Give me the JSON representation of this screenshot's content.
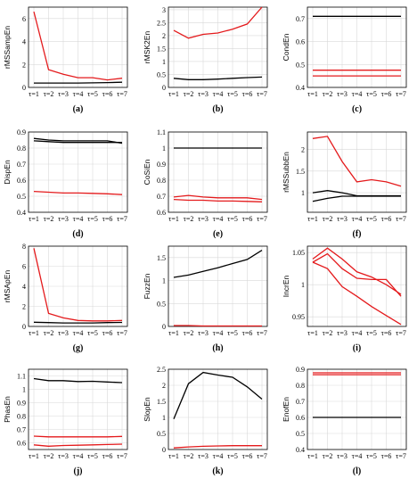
{
  "chart_data": [
    {
      "type": "line",
      "caption": "(a)",
      "ylabel": "rMSSampEn",
      "x": [
        "τ=1",
        "τ=2",
        "τ=3",
        "τ=4",
        "τ=5",
        "τ=6",
        "τ=7"
      ],
      "ylim": [
        0,
        7
      ],
      "yticks": [
        0,
        2,
        4,
        6
      ],
      "ytick_labels": [
        "0",
        "2",
        "4",
        "6"
      ],
      "series": [
        {
          "color": "#e41a1c",
          "values": [
            6.6,
            1.55,
            1.15,
            0.85,
            0.85,
            0.65,
            0.8
          ]
        },
        {
          "color": "#000000",
          "values": [
            0.38,
            0.38,
            0.38,
            0.38,
            0.4,
            0.42,
            0.45
          ]
        }
      ]
    },
    {
      "type": "line",
      "caption": "(b)",
      "ylabel": "rMSK2En",
      "x": [
        "τ=1",
        "τ=2",
        "τ=3",
        "τ=4",
        "τ=5",
        "τ=6",
        "τ=7"
      ],
      "ylim": [
        0,
        3.1
      ],
      "yticks": [
        0,
        0.5,
        1,
        1.5,
        2,
        2.5,
        3
      ],
      "ytick_labels": [
        "0",
        "0.5",
        "1",
        "1.5",
        "2",
        "2.5",
        "3"
      ],
      "series": [
        {
          "color": "#e41a1c",
          "values": [
            2.2,
            1.9,
            2.05,
            2.1,
            2.25,
            2.45,
            3.1
          ]
        },
        {
          "color": "#000000",
          "values": [
            0.35,
            0.3,
            0.3,
            0.32,
            0.35,
            0.38,
            0.4
          ]
        }
      ]
    },
    {
      "type": "line",
      "caption": "(c)",
      "ylabel": "CondEn",
      "x": [
        "τ=1",
        "τ=2",
        "τ=3",
        "τ=4",
        "τ=5",
        "τ=6",
        "τ=7"
      ],
      "ylim": [
        0.4,
        0.75
      ],
      "yticks": [
        0.4,
        0.5,
        0.6,
        0.7
      ],
      "ytick_labels": [
        "0.4",
        "0.5",
        "0.6",
        "0.7"
      ],
      "series": [
        {
          "color": "#000000",
          "values": [
            0.71,
            0.71,
            0.71,
            0.71,
            0.71,
            0.71,
            0.71
          ]
        },
        {
          "color": "#e41a1c",
          "values": [
            0.475,
            0.475,
            0.475,
            0.475,
            0.475,
            0.475,
            0.475
          ]
        },
        {
          "color": "#e41a1c",
          "values": [
            0.45,
            0.45,
            0.45,
            0.45,
            0.45,
            0.45,
            0.45
          ]
        }
      ]
    },
    {
      "type": "line",
      "caption": "(d)",
      "ylabel": "DispEn",
      "x": [
        "τ=1",
        "τ=2",
        "τ=3",
        "τ=4",
        "τ=5",
        "τ=6",
        "τ=7"
      ],
      "ylim": [
        0.4,
        0.9
      ],
      "yticks": [
        0.4,
        0.5,
        0.6,
        0.7,
        0.8,
        0.9
      ],
      "ytick_labels": [
        "0.4",
        "0.5",
        "0.6",
        "0.7",
        "0.8",
        "0.9"
      ],
      "series": [
        {
          "color": "#000000",
          "values": [
            0.86,
            0.85,
            0.845,
            0.845,
            0.845,
            0.845,
            0.83
          ]
        },
        {
          "color": "#000000",
          "values": [
            0.845,
            0.84,
            0.835,
            0.835,
            0.835,
            0.835,
            0.835
          ]
        },
        {
          "color": "#e41a1c",
          "values": [
            0.53,
            0.525,
            0.52,
            0.52,
            0.518,
            0.515,
            0.51
          ]
        }
      ]
    },
    {
      "type": "line",
      "caption": "(e)",
      "ylabel": "CoSiEn",
      "x": [
        "τ=1",
        "τ=2",
        "τ=3",
        "τ=4",
        "τ=5",
        "τ=6",
        "τ=7"
      ],
      "ylim": [
        0.6,
        1.1
      ],
      "yticks": [
        0.6,
        0.7,
        0.8,
        0.9,
        1,
        1.1
      ],
      "ytick_labels": [
        "0.6",
        "0.7",
        "0.8",
        "0.9",
        "1",
        "1.1"
      ],
      "series": [
        {
          "color": "#000000",
          "values": [
            1,
            1,
            1,
            1,
            1,
            1,
            1
          ]
        },
        {
          "color": "#e41a1c",
          "values": [
            0.695,
            0.705,
            0.695,
            0.69,
            0.69,
            0.69,
            0.68
          ]
        },
        {
          "color": "#e41a1c",
          "values": [
            0.68,
            0.675,
            0.675,
            0.67,
            0.67,
            0.668,
            0.665
          ]
        }
      ]
    },
    {
      "type": "line",
      "caption": "(f)",
      "ylabel": "rMSSubbEn",
      "x": [
        "τ=1",
        "τ=2",
        "τ=3",
        "τ=4",
        "τ=5",
        "τ=6",
        "τ=7"
      ],
      "ylim": [
        0.55,
        2.4
      ],
      "yticks": [
        1,
        1.5,
        2
      ],
      "ytick_labels": [
        "1",
        "1.5",
        "2"
      ],
      "series": [
        {
          "color": "#e41a1c",
          "values": [
            2.25,
            2.3,
            1.72,
            1.25,
            1.3,
            1.25,
            1.15
          ]
        },
        {
          "color": "#000000",
          "values": [
            1.0,
            1.05,
            1.0,
            0.93,
            0.93,
            0.93,
            0.93
          ]
        },
        {
          "color": "#000000",
          "values": [
            0.8,
            0.87,
            0.92,
            0.92,
            0.92,
            0.92,
            0.92
          ]
        }
      ]
    },
    {
      "type": "line",
      "caption": "(g)",
      "ylabel": "rMSApEn",
      "x": [
        "τ=1",
        "τ=2",
        "τ=3",
        "τ=4",
        "τ=5",
        "τ=6",
        "τ=7"
      ],
      "ylim": [
        0,
        8
      ],
      "yticks": [
        0,
        2,
        4,
        6,
        8
      ],
      "ytick_labels": [
        "0",
        "2",
        "4",
        "6",
        "8"
      ],
      "series": [
        {
          "color": "#e41a1c",
          "values": [
            7.8,
            1.3,
            0.85,
            0.6,
            0.55,
            0.55,
            0.6
          ]
        },
        {
          "color": "#000000",
          "values": [
            0.42,
            0.38,
            0.35,
            0.35,
            0.35,
            0.38,
            0.4
          ]
        }
      ]
    },
    {
      "type": "line",
      "caption": "(h)",
      "ylabel": "FuzzEn",
      "x": [
        "τ=1",
        "τ=2",
        "τ=3",
        "τ=4",
        "τ=5",
        "τ=6",
        "τ=7"
      ],
      "ylim": [
        0,
        1.75
      ],
      "yticks": [
        0,
        0.5,
        1,
        1.5
      ],
      "ytick_labels": [
        "0",
        "0.5",
        "1",
        "1.5"
      ],
      "series": [
        {
          "color": "#000000",
          "values": [
            1.07,
            1.12,
            1.2,
            1.28,
            1.37,
            1.46,
            1.66
          ]
        },
        {
          "color": "#e41a1c",
          "values": [
            0.02,
            0.02,
            0.01,
            0.01,
            0.01,
            0.01,
            0.01
          ]
        }
      ]
    },
    {
      "type": "line",
      "caption": "(i)",
      "ylabel": "IncrEn",
      "x": [
        "τ=1",
        "τ=2",
        "τ=3",
        "τ=4",
        "τ=5",
        "τ=6",
        "τ=7"
      ],
      "ylim": [
        0.935,
        1.06
      ],
      "yticks": [
        0.95,
        1,
        1.05
      ],
      "ytick_labels": [
        "0.95",
        "1",
        "1.05"
      ],
      "series": [
        {
          "color": "#e41a1c",
          "values": [
            1.04,
            1.057,
            1.04,
            1.02,
            1.012,
            1.0,
            0.985
          ]
        },
        {
          "color": "#e41a1c",
          "values": [
            1.035,
            1.048,
            1.025,
            1.01,
            1.008,
            1.008,
            0.982
          ]
        },
        {
          "color": "#e41a1c",
          "values": [
            1.035,
            1.025,
            0.997,
            0.982,
            0.966,
            0.952,
            0.938
          ]
        }
      ]
    },
    {
      "type": "line",
      "caption": "(j)",
      "ylabel": "PhasEn",
      "x": [
        "τ=1",
        "τ=2",
        "τ=3",
        "τ=4",
        "τ=5",
        "τ=6",
        "τ=7"
      ],
      "ylim": [
        0.55,
        1.15
      ],
      "yticks": [
        0.6,
        0.7,
        0.8,
        0.9,
        1,
        1.1
      ],
      "ytick_labels": [
        "0.6",
        "0.7",
        "0.8",
        "0.9",
        "1",
        "1.1"
      ],
      "series": [
        {
          "color": "#000000",
          "values": [
            1.08,
            1.065,
            1.065,
            1.058,
            1.06,
            1.055,
            1.05
          ]
        },
        {
          "color": "#e41a1c",
          "values": [
            0.65,
            0.645,
            0.645,
            0.645,
            0.645,
            0.645,
            0.648
          ]
        },
        {
          "color": "#e41a1c",
          "values": [
            0.585,
            0.575,
            0.58,
            0.582,
            0.585,
            0.587,
            0.59
          ]
        }
      ]
    },
    {
      "type": "line",
      "caption": "(k)",
      "ylabel": "SlopEn",
      "x": [
        "τ=1",
        "τ=2",
        "τ=3",
        "τ=4",
        "τ=5",
        "τ=6",
        "τ=7"
      ],
      "ylim": [
        0,
        2.5
      ],
      "yticks": [
        0,
        0.5,
        1,
        1.5,
        2,
        2.5
      ],
      "ytick_labels": [
        "0",
        "0.5",
        "1",
        "1.5",
        "2",
        "2.5"
      ],
      "series": [
        {
          "color": "#000000",
          "values": [
            0.95,
            2.05,
            2.4,
            2.32,
            2.25,
            1.95,
            1.57
          ]
        },
        {
          "color": "#e41a1c",
          "values": [
            0.05,
            0.08,
            0.1,
            0.11,
            0.12,
            0.12,
            0.12
          ]
        }
      ]
    },
    {
      "type": "line",
      "caption": "(l)",
      "ylabel": "EnofEn",
      "x": [
        "τ=1",
        "τ=2",
        "τ=3",
        "τ=4",
        "τ=5",
        "τ=6",
        "τ=7"
      ],
      "ylim": [
        0.4,
        0.9
      ],
      "yticks": [
        0.4,
        0.5,
        0.6,
        0.7,
        0.8,
        0.9
      ],
      "ytick_labels": [
        "0.4",
        "0.5",
        "0.6",
        "0.7",
        "0.8",
        "0.9"
      ],
      "series": [
        {
          "color": "#e41a1c",
          "values": [
            0.878,
            0.878,
            0.878,
            0.878,
            0.878,
            0.878,
            0.878
          ]
        },
        {
          "color": "#e41a1c",
          "values": [
            0.866,
            0.866,
            0.866,
            0.866,
            0.866,
            0.866,
            0.866
          ]
        },
        {
          "color": "#000000",
          "values": [
            0.6,
            0.6,
            0.6,
            0.6,
            0.6,
            0.6,
            0.6
          ]
        }
      ]
    }
  ]
}
